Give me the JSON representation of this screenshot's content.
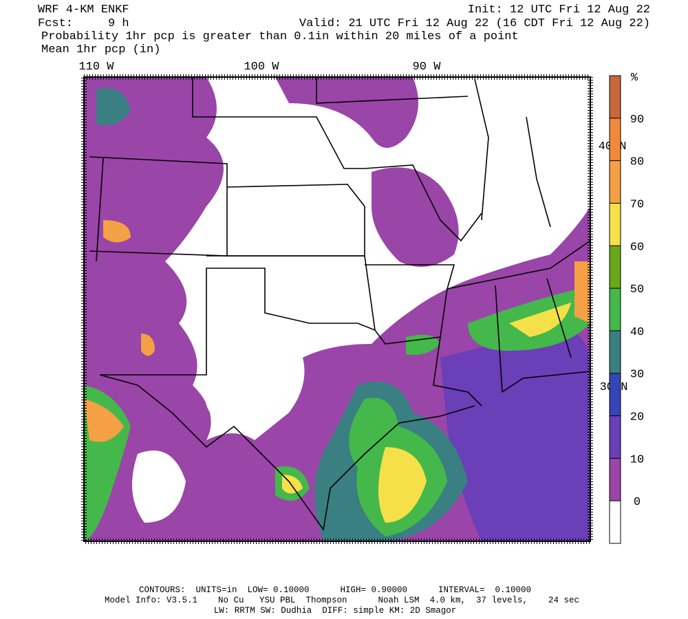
{
  "header": {
    "model": "WRF 4-KM ENKF",
    "init": "Init: 12 UTC Fri 12 Aug 22",
    "forecast": "Fcst:     9 h",
    "valid": "Valid: 21 UTC Fri 12 Aug 22 (16 CDT Fri 12 Aug 22)",
    "field": "Probability 1hr pcp is greater than 0.1in within 20 miles of a point",
    "overlay": "Mean 1hr pcp (in)"
  },
  "map": {
    "longitudes": [
      "110 W",
      "100 W",
      "90 W"
    ],
    "latitudes": [
      "40 N",
      "30 N"
    ]
  },
  "colorbar": {
    "unit": "%",
    "ticks": [
      0,
      10,
      20,
      30,
      40,
      50,
      60,
      70,
      80,
      90
    ],
    "colors": [
      "#ffffff",
      "#9a45a8",
      "#6a3fb8",
      "#3545b8",
      "#3a7f82",
      "#44b84a",
      "#6aa81a",
      "#f6e04a",
      "#f5a044",
      "#f08a3a",
      "#c8683a"
    ]
  },
  "footer": {
    "contours": "CONTOURS:  UNITS=in  LOW= 0.10000      HIGH= 0.90000      INTERVAL=  0.10000",
    "model_info": "Model Info: V3.5.1    No Cu   YSU PBL  Thompson      Noah LSM  4.0 km,  37 levels,    24 sec",
    "physics": "LW: RRTM SW: Dudhia  DIFF: simple KM: 2D Smagor"
  }
}
